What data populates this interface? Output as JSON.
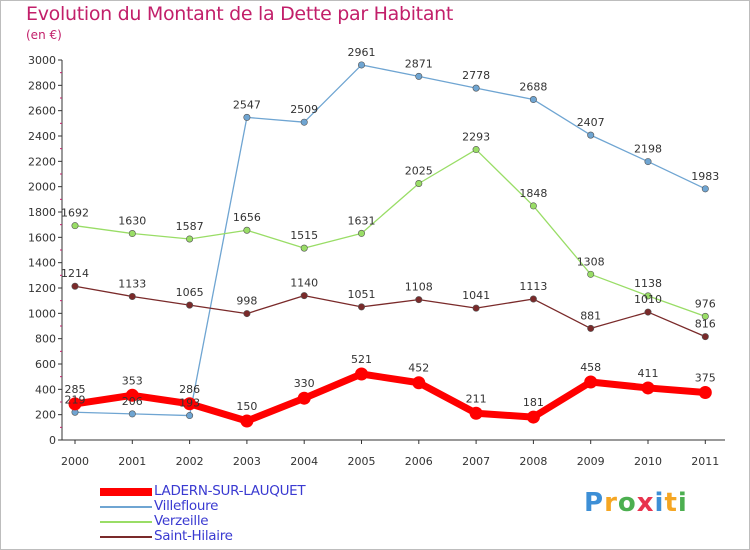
{
  "title": "Evolution du Montant de la Dette par Habitant",
  "subtitle": "(en €)",
  "logo": {
    "letters": [
      "P",
      "r",
      "o",
      "x",
      "i",
      "t",
      "i"
    ],
    "colors": [
      "#3d8fd6",
      "#f5a623",
      "#4caf50",
      "#e8344e",
      "#3d8fd6",
      "#f5a623",
      "#4caf50"
    ]
  },
  "chart_data": {
    "type": "line",
    "categories": [
      "2000",
      "2001",
      "2002",
      "2003",
      "2004",
      "2005",
      "2006",
      "2007",
      "2008",
      "2009",
      "2010",
      "2011"
    ],
    "ylim": [
      0,
      3000
    ],
    "yticks": [
      0,
      200,
      400,
      600,
      800,
      1000,
      1200,
      1400,
      1600,
      1800,
      2000,
      2200,
      2400,
      2600,
      2800,
      3000
    ],
    "grid": false,
    "legend_position": "bottom-left",
    "series": [
      {
        "name": "LADERN-SUR-LAUQUET",
        "color": "#ff0000",
        "emphasis": true,
        "values": [
          285,
          353,
          286,
          150,
          330,
          521,
          452,
          211,
          181,
          458,
          411,
          375
        ],
        "labels": [
          "285",
          "353",
          "286",
          "150",
          "330",
          "521",
          "452",
          "211",
          "181",
          "458",
          "411",
          "375"
        ]
      },
      {
        "name": "Villefloure",
        "color": "#6fa5d2",
        "emphasis": false,
        "values": [
          219,
          206,
          193,
          2547,
          2509,
          2961,
          2871,
          2778,
          2688,
          2407,
          2198,
          1983
        ],
        "labels": [
          "219",
          "206",
          "193",
          "2547",
          "2509",
          "2961",
          "2871",
          "2778",
          "2688",
          "2407",
          "2198",
          "1983"
        ]
      },
      {
        "name": "Verzeille",
        "color": "#99dd66",
        "emphasis": false,
        "values": [
          1692,
          1630,
          1587,
          1656,
          1515,
          1631,
          2025,
          2293,
          1848,
          1308,
          1138,
          976
        ],
        "labels": [
          "1692",
          "1630",
          "1587",
          "1656",
          "1515",
          "1631",
          "2025",
          "2293",
          "1848",
          "1308",
          "1138",
          "976"
        ]
      },
      {
        "name": "Saint-Hilaire",
        "color": "#7a2a2a",
        "emphasis": false,
        "values": [
          1214,
          1133,
          1065,
          998,
          1140,
          1051,
          1108,
          1041,
          1113,
          881,
          1010,
          816
        ],
        "labels": [
          "1214",
          "1133",
          "1065",
          "998",
          "1140",
          "1051",
          "1108",
          "1041",
          "1113",
          "881",
          "1010",
          "816"
        ]
      }
    ]
  }
}
